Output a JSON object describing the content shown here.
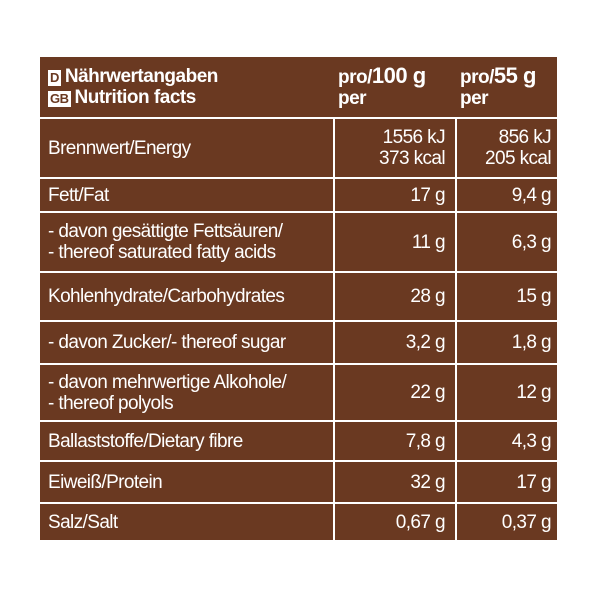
{
  "header": {
    "lang_de": "D",
    "title_de": "Nährwertangaben",
    "lang_gb": "GB",
    "title_gb": "Nutrition facts",
    "col1": {
      "pro": "pro/",
      "amount": "100 g",
      "per": "per"
    },
    "col2": {
      "pro": "pro/",
      "amount": "55 g",
      "per": "per"
    }
  },
  "table": {
    "rows": [
      {
        "label": [
          "Brennwert/Energy"
        ],
        "per100": [
          "1556 kJ",
          "373 kcal"
        ],
        "per55": [
          "856 kJ",
          "205 kcal"
        ]
      },
      {
        "label": [
          "Fett/Fat"
        ],
        "per100": [
          "17 g"
        ],
        "per55": [
          "9,4 g"
        ]
      },
      {
        "label": [
          "- davon gesättigte Fettsäuren/",
          "- thereof saturated fatty acids"
        ],
        "per100": [
          "11 g"
        ],
        "per55": [
          "6,3 g"
        ]
      },
      {
        "label": [
          "Kohlenhydrate/Carbohydrates"
        ],
        "per100": [
          "28 g"
        ],
        "per55": [
          "15 g"
        ]
      },
      {
        "label": [
          "- davon Zucker/- thereof sugar"
        ],
        "per100": [
          "3,2 g"
        ],
        "per55": [
          "1,8 g"
        ]
      },
      {
        "label": [
          "- davon mehrwertige Alkohole/",
          "- thereof polyols"
        ],
        "per100": [
          "22 g"
        ],
        "per55": [
          "12 g"
        ]
      },
      {
        "label": [
          "Ballaststoffe/Dietary fibre"
        ],
        "per100": [
          "7,8 g"
        ],
        "per55": [
          "4,3 g"
        ]
      },
      {
        "label": [
          "Eiweiß/Protein"
        ],
        "per100": [
          "32 g"
        ],
        "per55": [
          "17 g"
        ]
      },
      {
        "label": [
          "Salz/Salt"
        ],
        "per100": [
          "0,67 g"
        ],
        "per55": [
          "0,37 g"
        ]
      }
    ]
  }
}
